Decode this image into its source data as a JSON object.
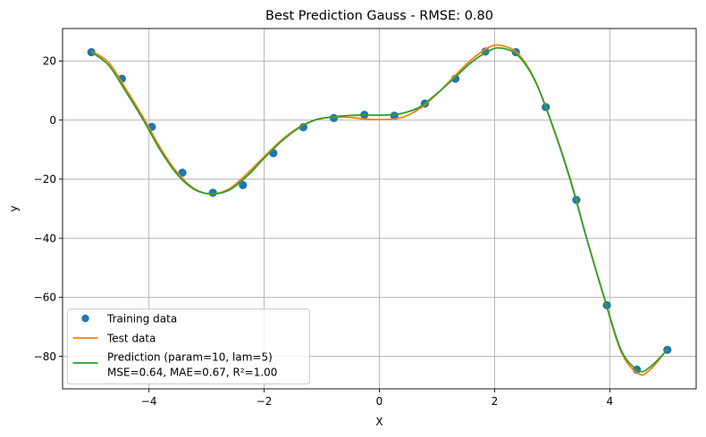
{
  "chart_data": {
    "type": "line",
    "title": "Best Prediction Gauss - RMSE: 0.80",
    "xlabel": "X",
    "ylabel": "y",
    "xlim": [
      -5.5,
      5.5
    ],
    "ylim": [
      -91,
      31
    ],
    "xticks": [
      -4,
      -2,
      0,
      2,
      4
    ],
    "yticks": [
      -80,
      -60,
      -40,
      -20,
      0,
      20
    ],
    "x_tick_labels": [
      "−4",
      "−2",
      "0",
      "2",
      "4"
    ],
    "y_tick_labels": [
      "−80",
      "−60",
      "−40",
      "−20",
      "0",
      "20"
    ],
    "grid": true,
    "legend_position": "lower-left",
    "colors": {
      "training": "#1f77b4",
      "test": "#ff7f0e",
      "prediction": "#2ca02c"
    },
    "series": [
      {
        "name": "Training data",
        "style": "markers",
        "x": [
          -5.0,
          -4.47,
          -3.95,
          -3.42,
          -2.89,
          -2.37,
          -1.84,
          -1.32,
          -0.79,
          -0.26,
          0.26,
          0.79,
          1.32,
          1.84,
          2.37,
          2.89,
          3.42,
          3.95,
          4.47,
          5.0
        ],
        "y": [
          23.0,
          14.0,
          -2.3,
          -17.8,
          -24.6,
          -22.0,
          -11.2,
          -2.4,
          0.7,
          1.8,
          1.5,
          5.6,
          14.0,
          23.2,
          23.0,
          4.4,
          -27.0,
          -62.7,
          -84.5,
          -77.8
        ]
      },
      {
        "name": "Test data",
        "style": "line",
        "x": [
          -5.0,
          -4.7,
          -4.4,
          -4.1,
          -3.8,
          -3.5,
          -3.2,
          -2.9,
          -2.6,
          -2.3,
          -2.0,
          -1.7,
          -1.4,
          -1.1,
          -0.8,
          -0.5,
          -0.2,
          0.1,
          0.4,
          0.7,
          1.0,
          1.3,
          1.6,
          1.9,
          2.1,
          2.4,
          2.7,
          3.0,
          3.3,
          3.6,
          3.9,
          4.2,
          4.5,
          4.7,
          5.0
        ],
        "y": [
          23.3,
          19.5,
          10.5,
          0.9,
          -9.5,
          -18.0,
          -23.4,
          -25.0,
          -23.2,
          -18.2,
          -12.4,
          -6.8,
          -2.5,
          0.2,
          1.0,
          0.9,
          0.3,
          0.2,
          0.9,
          3.9,
          8.8,
          14.8,
          20.5,
          24.6,
          25.3,
          22.6,
          13.6,
          -1.4,
          -19.0,
          -40.0,
          -60.0,
          -78.6,
          -85.9,
          -84.5,
          -77.6
        ]
      },
      {
        "name": "Prediction (param=10, lam=5)",
        "sub_label": "MSE=0.64, MAE=0.67, R²=1.00",
        "style": "line",
        "x": [
          -5.0,
          -4.7,
          -4.4,
          -4.1,
          -3.8,
          -3.5,
          -3.2,
          -2.9,
          -2.6,
          -2.3,
          -2.0,
          -1.7,
          -1.4,
          -1.1,
          -0.8,
          -0.5,
          -0.2,
          0.1,
          0.4,
          0.7,
          1.0,
          1.3,
          1.6,
          1.9,
          2.1,
          2.4,
          2.7,
          3.0,
          3.3,
          3.6,
          3.9,
          4.2,
          4.5,
          4.7,
          5.0
        ],
        "y": [
          23.0,
          18.6,
          9.6,
          0.1,
          -10.3,
          -18.6,
          -23.6,
          -25.0,
          -23.6,
          -19.0,
          -12.9,
          -7.2,
          -2.7,
          0.1,
          1.1,
          1.6,
          1.7,
          1.7,
          2.3,
          4.4,
          9.0,
          14.2,
          19.6,
          23.4,
          24.4,
          22.0,
          13.4,
          -1.6,
          -19.3,
          -40.2,
          -59.8,
          -78.0,
          -84.8,
          -83.6,
          -77.8
        ]
      }
    ]
  }
}
